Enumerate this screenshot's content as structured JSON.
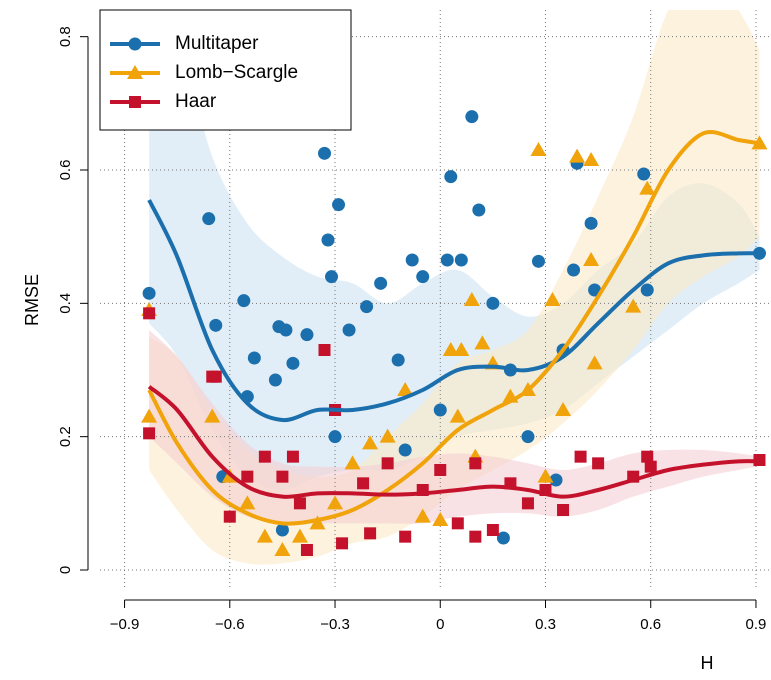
{
  "chart_data": {
    "type": "scatter",
    "xlabel": "H",
    "ylabel": "RMSE",
    "xlim": [
      -0.97,
      0.94
    ],
    "ylim": [
      -0.03,
      0.84
    ],
    "xticks": [
      {
        "value": -0.9,
        "label": "−0.9"
      },
      {
        "value": -0.6,
        "label": "−0.6"
      },
      {
        "value": -0.3,
        "label": "−0.3"
      },
      0,
      0.3,
      0.6,
      0.9
    ],
    "yticks": [
      0,
      0.2,
      0.4,
      0.6,
      0.8
    ],
    "grid": true,
    "legend": "top-left",
    "series": [
      {
        "name": "Multitaper",
        "color": "#1b6fad",
        "band_color": "#cfe3f2",
        "marker": "circle",
        "x": [
          -0.83,
          -0.66,
          -0.64,
          -0.62,
          -0.56,
          -0.55,
          -0.53,
          -0.47,
          -0.46,
          -0.44,
          -0.42,
          -0.38,
          -0.33,
          -0.32,
          -0.31,
          -0.29,
          -0.26,
          -0.21,
          -0.17,
          -0.12,
          -0.08,
          -0.05,
          0.02,
          0.03,
          0.06,
          0.09,
          0.11,
          0.15,
          0.28,
          0.38,
          0.39,
          0.43,
          0.44,
          0.58,
          0.59,
          0.91,
          -0.45,
          -0.3,
          0.0,
          0.2,
          0.33,
          0.18,
          -0.1,
          0.25,
          0.35
        ],
        "values": [
          0.415,
          0.527,
          0.367,
          0.14,
          0.404,
          0.26,
          0.318,
          0.285,
          0.365,
          0.36,
          0.31,
          0.353,
          0.625,
          0.495,
          0.44,
          0.548,
          0.36,
          0.395,
          0.43,
          0.315,
          0.465,
          0.44,
          0.465,
          0.59,
          0.465,
          0.68,
          0.54,
          0.4,
          0.463,
          0.45,
          0.61,
          0.52,
          0.42,
          0.594,
          0.42,
          0.475,
          0.06,
          0.2,
          0.24,
          0.3,
          0.135,
          0.048,
          0.18,
          0.2,
          0.33
        ],
        "fit": {
          "x": [
            -0.83,
            -0.75,
            -0.65,
            -0.55,
            -0.45,
            -0.35,
            -0.25,
            -0.15,
            -0.05,
            0.05,
            0.15,
            0.25,
            0.35,
            0.45,
            0.55,
            0.65,
            0.75,
            0.85,
            0.91
          ],
          "values": [
            0.555,
            0.47,
            0.33,
            0.25,
            0.225,
            0.24,
            0.24,
            0.25,
            0.27,
            0.3,
            0.305,
            0.3,
            0.32,
            0.37,
            0.42,
            0.46,
            0.472,
            0.475,
            0.475
          ],
          "upper": [
            0.8,
            0.8,
            0.62,
            0.52,
            0.47,
            0.44,
            0.43,
            0.4,
            0.43,
            0.45,
            0.41,
            0.38,
            0.4,
            0.45,
            0.49,
            0.56,
            0.58,
            0.55,
            0.5
          ],
          "lower": [
            0.37,
            0.32,
            0.21,
            0.14,
            0.12,
            0.14,
            0.15,
            0.15,
            0.17,
            0.2,
            0.21,
            0.22,
            0.24,
            0.28,
            0.32,
            0.36,
            0.4,
            0.43,
            0.45
          ]
        }
      },
      {
        "name": "Lomb−Scargle",
        "color": "#f0a30a",
        "band_color": "#fbe9c6",
        "marker": "triangle",
        "x": [
          -0.83,
          -0.83,
          -0.65,
          -0.6,
          -0.55,
          -0.45,
          -0.4,
          -0.3,
          -0.25,
          -0.2,
          -0.15,
          -0.1,
          -0.05,
          0.0,
          0.03,
          0.06,
          0.09,
          0.12,
          0.15,
          0.2,
          0.25,
          0.28,
          0.32,
          0.35,
          0.39,
          0.43,
          0.43,
          0.44,
          0.55,
          0.59,
          0.91,
          -0.35,
          0.1,
          0.3,
          -0.5,
          0.05
        ],
        "values": [
          0.39,
          0.23,
          0.23,
          0.14,
          0.1,
          0.03,
          0.05,
          0.1,
          0.16,
          0.19,
          0.2,
          0.27,
          0.08,
          0.075,
          0.33,
          0.33,
          0.405,
          0.34,
          0.31,
          0.26,
          0.27,
          0.63,
          0.405,
          0.24,
          0.62,
          0.615,
          0.465,
          0.31,
          0.395,
          0.572,
          0.64,
          0.07,
          0.17,
          0.14,
          0.05,
          0.23
        ],
        "fit": {
          "x": [
            -0.83,
            -0.75,
            -0.65,
            -0.55,
            -0.45,
            -0.35,
            -0.25,
            -0.15,
            -0.05,
            0.05,
            0.15,
            0.25,
            0.35,
            0.45,
            0.55,
            0.65,
            0.75,
            0.85,
            0.91
          ],
          "values": [
            0.27,
            0.19,
            0.12,
            0.085,
            0.07,
            0.075,
            0.09,
            0.12,
            0.16,
            0.21,
            0.24,
            0.27,
            0.33,
            0.41,
            0.5,
            0.6,
            0.655,
            0.645,
            0.64
          ],
          "upper": [
            0.35,
            0.32,
            0.24,
            0.18,
            0.15,
            0.14,
            0.15,
            0.2,
            0.25,
            0.31,
            0.33,
            0.36,
            0.45,
            0.56,
            0.68,
            0.84,
            0.9,
            0.84,
            0.78
          ],
          "lower": [
            0.15,
            0.09,
            0.03,
            0.01,
            0.01,
            0.02,
            0.04,
            0.05,
            0.08,
            0.12,
            0.15,
            0.18,
            0.22,
            0.27,
            0.33,
            0.4,
            0.44,
            0.47,
            0.5
          ]
        }
      },
      {
        "name": "Haar",
        "color": "#c4122c",
        "band_color": "#f5cfd3",
        "marker": "square",
        "x": [
          -0.83,
          -0.83,
          -0.65,
          -0.64,
          -0.6,
          -0.55,
          -0.5,
          -0.45,
          -0.42,
          -0.4,
          -0.38,
          -0.33,
          -0.3,
          -0.28,
          -0.22,
          -0.2,
          -0.15,
          -0.1,
          -0.05,
          0.0,
          0.05,
          0.1,
          0.15,
          0.2,
          0.25,
          0.3,
          0.35,
          0.4,
          0.45,
          0.55,
          0.59,
          0.6,
          0.91,
          0.1
        ],
        "values": [
          0.385,
          0.205,
          0.29,
          0.29,
          0.08,
          0.14,
          0.17,
          0.14,
          0.17,
          0.1,
          0.03,
          0.33,
          0.24,
          0.04,
          0.13,
          0.055,
          0.16,
          0.05,
          0.12,
          0.15,
          0.07,
          0.16,
          0.06,
          0.13,
          0.1,
          0.12,
          0.09,
          0.17,
          0.16,
          0.14,
          0.17,
          0.155,
          0.165,
          0.05
        ],
        "fit": {
          "x": [
            -0.83,
            -0.75,
            -0.65,
            -0.55,
            -0.45,
            -0.35,
            -0.25,
            -0.15,
            -0.05,
            0.05,
            0.15,
            0.25,
            0.35,
            0.45,
            0.55,
            0.65,
            0.75,
            0.85,
            0.91
          ],
          "values": [
            0.275,
            0.24,
            0.17,
            0.125,
            0.11,
            0.115,
            0.115,
            0.113,
            0.115,
            0.12,
            0.125,
            0.12,
            0.11,
            0.12,
            0.135,
            0.15,
            0.158,
            0.163,
            0.163
          ],
          "upper": [
            0.36,
            0.32,
            0.25,
            0.19,
            0.16,
            0.155,
            0.155,
            0.16,
            0.17,
            0.175,
            0.17,
            0.16,
            0.15,
            0.16,
            0.175,
            0.18,
            0.18,
            0.175,
            0.17
          ],
          "lower": [
            0.2,
            0.16,
            0.11,
            0.08,
            0.07,
            0.07,
            0.07,
            0.07,
            0.07,
            0.08,
            0.085,
            0.085,
            0.08,
            0.09,
            0.11,
            0.125,
            0.14,
            0.15,
            0.156
          ]
        }
      }
    ]
  }
}
